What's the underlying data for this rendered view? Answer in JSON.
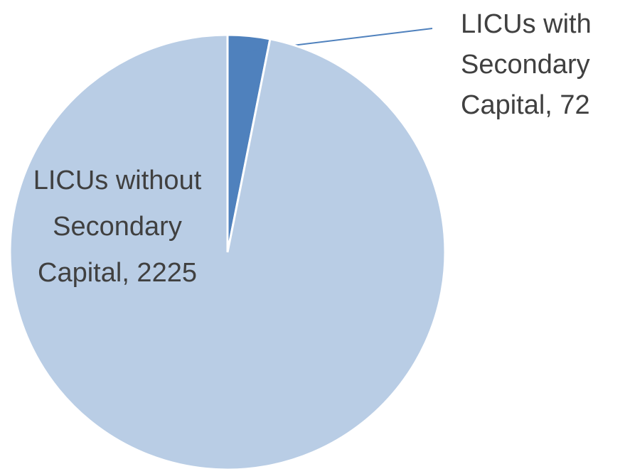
{
  "chart_data": {
    "type": "pie",
    "labels": [
      "LICUs with Secondary Capital, 72",
      "LICUs without Secondary Capital, 2225"
    ],
    "values": [
      72,
      2225
    ],
    "colors": [
      "#4f81bd",
      "#b9cde5"
    ]
  }
}
